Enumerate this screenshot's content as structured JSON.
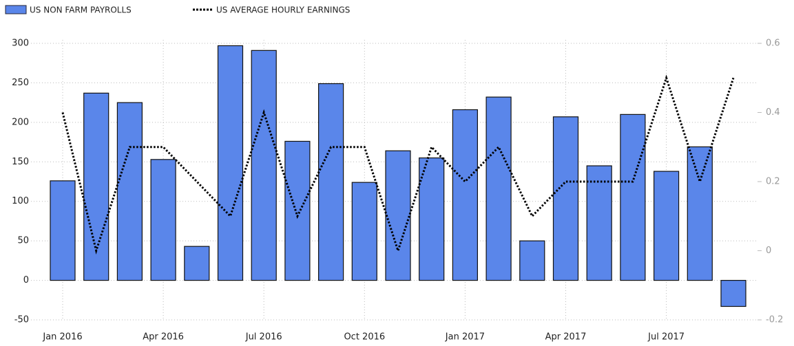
{
  "chart_data": {
    "type": "bar",
    "categories": [
      "Jan 2016",
      null,
      null,
      "Apr 2016",
      null,
      null,
      "Jul 2016",
      null,
      null,
      "Oct 2016",
      null,
      null,
      "Jan 2017",
      null,
      null,
      "Apr 2017",
      null,
      null,
      "Jul 2017",
      null,
      null
    ],
    "series": [
      {
        "name": "US NON FARM PAYROLLS",
        "type": "bar",
        "color": "#5a86ea",
        "values": [
          126,
          237,
          225,
          153,
          43,
          297,
          291,
          176,
          249,
          124,
          164,
          155,
          216,
          232,
          50,
          207,
          145,
          210,
          138,
          169,
          -33
        ]
      },
      {
        "name": "US AVERAGE HOURLY EARNINGS",
        "type": "line",
        "color": "#000000",
        "axis": "y2",
        "values": [
          0.4,
          0.0,
          0.3,
          0.3,
          0.2,
          0.1,
          0.4,
          0.1,
          0.3,
          0.3,
          0.0,
          0.3,
          0.2,
          0.3,
          0.1,
          0.2,
          0.2,
          0.2,
          0.5,
          0.2,
          0.5
        ]
      }
    ],
    "ylim": [
      -50,
      300
    ],
    "yticks": [
      -50,
      0,
      50,
      100,
      150,
      200,
      250,
      300
    ],
    "y2lim": [
      -0.2,
      0.6
    ],
    "y2ticks": [
      -0.2,
      0,
      0.2,
      0.4,
      0.6
    ],
    "grid": true,
    "legend": "top-left"
  }
}
